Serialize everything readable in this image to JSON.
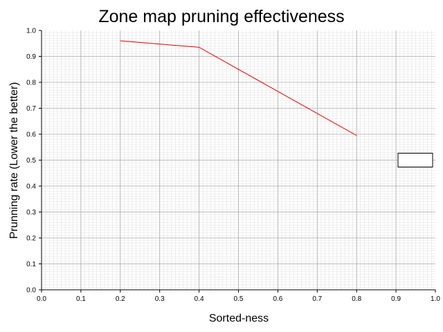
{
  "chart_data": {
    "type": "line",
    "title": "Zone map pruning effectiveness",
    "xlabel": "Sorted-ness",
    "ylabel": "Prunning rate (Lower the better)",
    "xlim": [
      0.0,
      1.0
    ],
    "ylim": [
      0.0,
      1.0
    ],
    "xticks": [
      "0.0",
      "0.1",
      "0.2",
      "0.3",
      "0.4",
      "0.5",
      "0.6",
      "0.7",
      "0.8",
      "0.9",
      "1.0"
    ],
    "yticks": [
      "0.0",
      "0.1",
      "0.2",
      "0.3",
      "0.4",
      "0.5",
      "0.6",
      "0.7",
      "0.8",
      "0.9",
      "1.0"
    ],
    "grid": true,
    "minor_grid": true,
    "legend": "right, empty",
    "series": [
      {
        "color": "#e00000",
        "x": [
          0.2,
          0.4,
          0.8
        ],
        "y": [
          0.96,
          0.935,
          0.595
        ]
      }
    ]
  }
}
